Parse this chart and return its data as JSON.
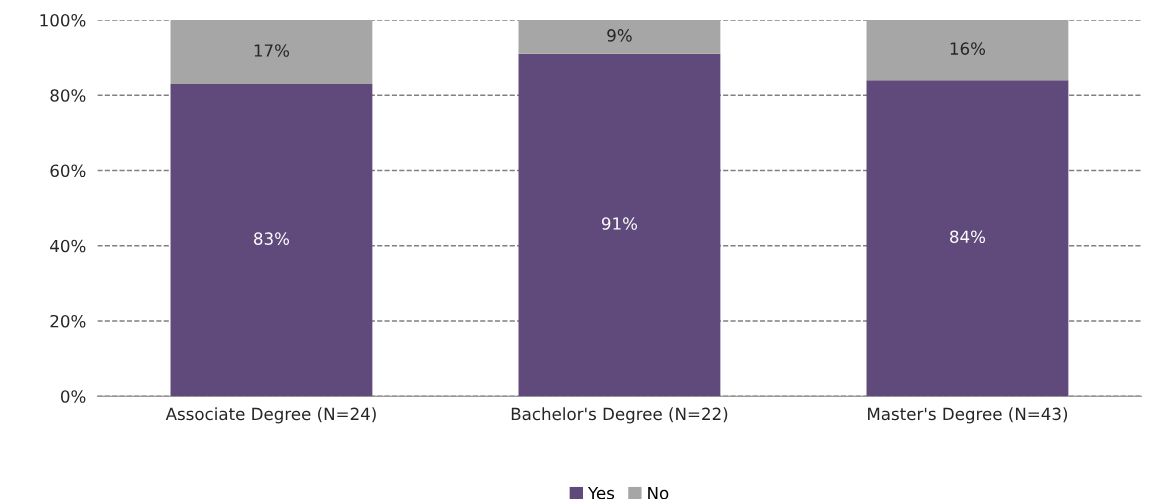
{
  "chart_data": {
    "type": "bar",
    "stacked": true,
    "categories": [
      "Associate Degree (N=24)",
      "Bachelor's Degree (N=22)",
      "Master's Degree (N=43)"
    ],
    "series": [
      {
        "name": "Yes",
        "color": "#604a7b",
        "values": [
          83,
          91,
          84
        ],
        "value_labels": [
          "83%",
          "91%",
          "84%"
        ]
      },
      {
        "name": "No",
        "color": "#a6a6a6",
        "values": [
          17,
          9,
          16
        ],
        "value_labels": [
          "17%",
          "9%",
          "16%"
        ]
      }
    ],
    "ylim": [
      0,
      100
    ],
    "yticks": [
      {
        "value": 0,
        "label": "0%"
      },
      {
        "value": 20,
        "label": "20%"
      },
      {
        "value": 40,
        "label": "40%"
      },
      {
        "value": 60,
        "label": "60%"
      },
      {
        "value": 80,
        "label": "80%"
      },
      {
        "value": 100,
        "label": "100%"
      }
    ],
    "grid": "y",
    "line_style": "dashed",
    "legend": "bottom"
  }
}
